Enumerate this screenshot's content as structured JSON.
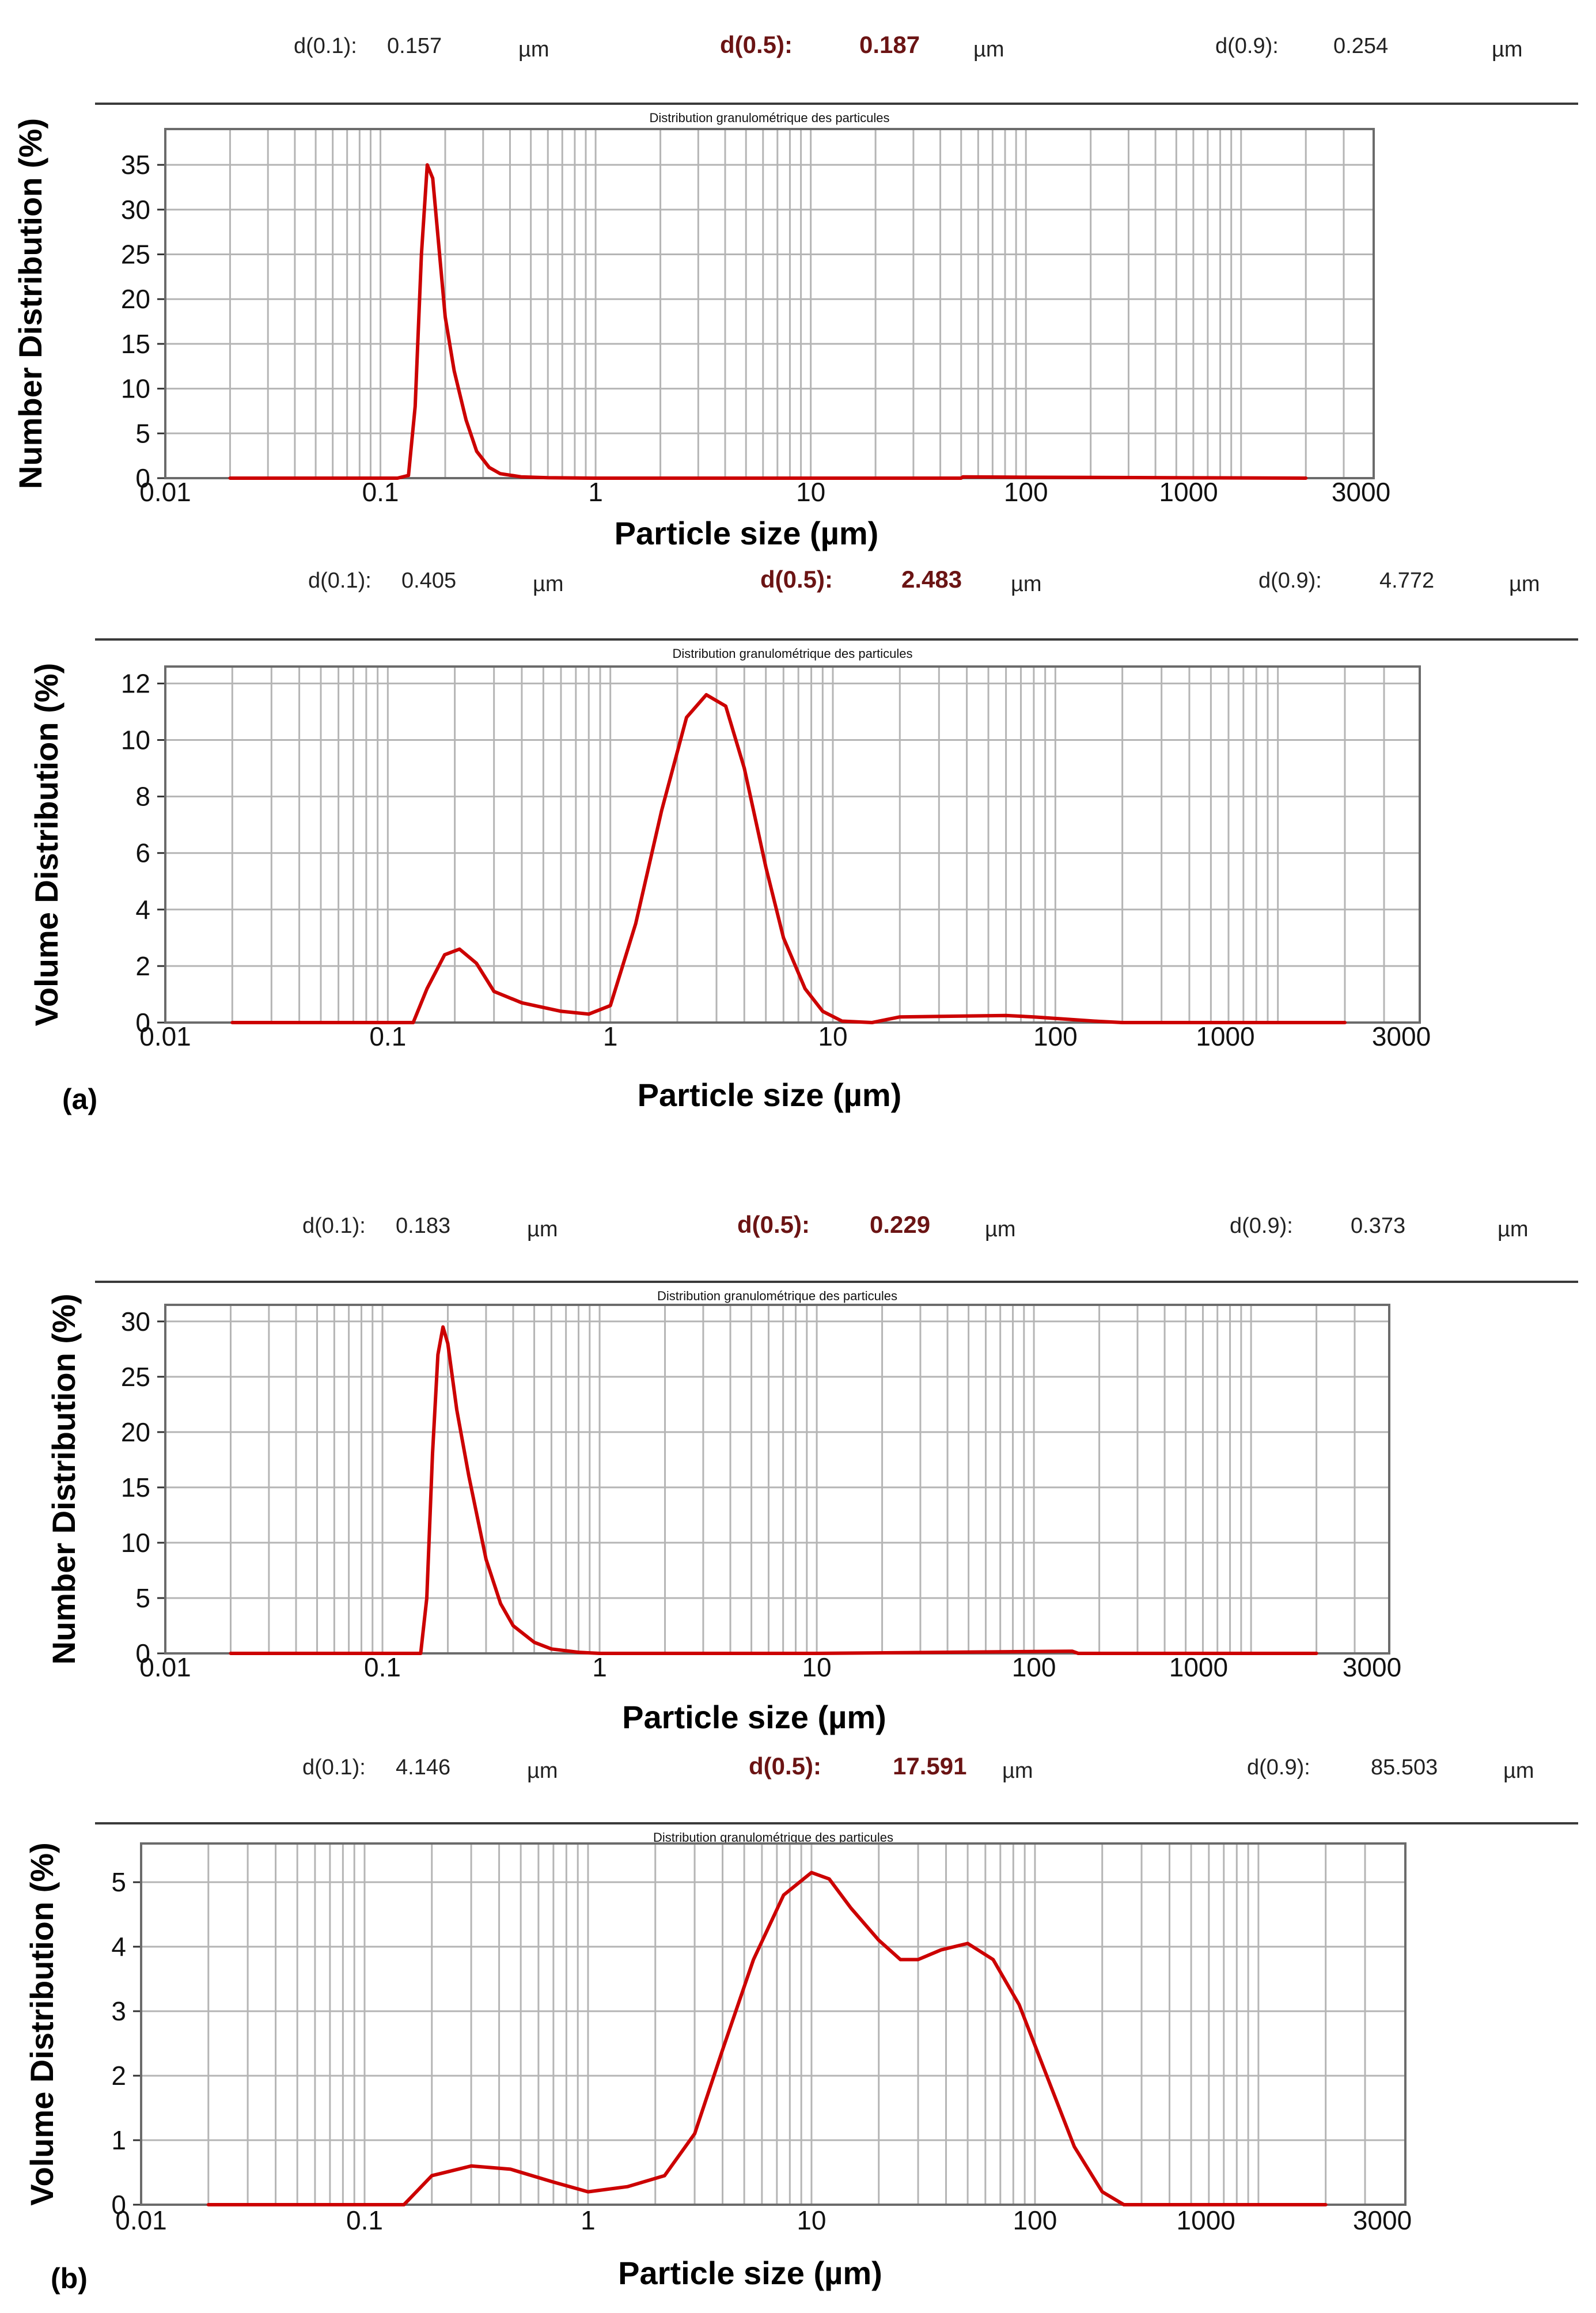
{
  "colors": {
    "curve": "#cc0000",
    "grid": "#b5b5b5",
    "frame": "#6b6b6b",
    "median": "#6b1414"
  },
  "panel_labels": {
    "a": "(a)",
    "b": "(b)"
  },
  "chart_data": [
    {
      "type": "line",
      "panel": "(a)",
      "title": "Distribution granulométrique des particules",
      "ylabel": "Number Distribution (%)",
      "xlabel": "Particle size (µm)",
      "xscale": "log",
      "xlim": [
        0.01,
        3000
      ],
      "ylim": [
        0,
        39
      ],
      "yticks": [
        0,
        5,
        10,
        15,
        20,
        25,
        30,
        35
      ],
      "xtick_labels": [
        "0.01",
        "0.1",
        "1",
        "10",
        "100",
        "1000",
        "3000"
      ],
      "xtick_values": [
        0.01,
        0.1,
        1,
        10,
        100,
        1000,
        3000
      ],
      "stats": {
        "d10": {
          "label": "d(0.1):",
          "value": "0.157",
          "unit": "µm"
        },
        "d50": {
          "label": "d(0.5):",
          "value": "0.187",
          "unit": "µm"
        },
        "d90": {
          "label": "d(0.9):",
          "value": "0.254",
          "unit": "µm"
        }
      },
      "x": [
        0.02,
        0.12,
        0.135,
        0.145,
        0.155,
        0.165,
        0.175,
        0.185,
        0.2,
        0.22,
        0.25,
        0.28,
        0.32,
        0.36,
        0.45,
        0.6,
        1,
        10,
        50,
        51,
        100,
        2000
      ],
      "y": [
        0,
        0,
        0.3,
        8,
        25,
        35,
        33.5,
        27,
        18,
        12,
        6.5,
        3,
        1.2,
        0.5,
        0.15,
        0.05,
        0,
        0,
        0,
        0.15,
        0.1,
        0
      ]
    },
    {
      "type": "line",
      "panel": "(a)",
      "title": "Distribution granulométrique des particules",
      "ylabel": "Volume Distribution (%)",
      "xlabel": "Particle size (µm)",
      "xscale": "log",
      "xlim": [
        0.01,
        3000
      ],
      "ylim": [
        0,
        12.6
      ],
      "yticks": [
        0,
        2,
        4,
        6,
        8,
        10,
        12
      ],
      "xtick_labels": [
        "0.01",
        "0.1",
        "1",
        "10",
        "100",
        "1000",
        "3000"
      ],
      "xtick_values": [
        0.01,
        0.1,
        1,
        10,
        100,
        1000,
        3000
      ],
      "stats": {
        "d10": {
          "label": "d(0.1):",
          "value": "0.405",
          "unit": "µm"
        },
        "d50": {
          "label": "d(0.5):",
          "value": "2.483",
          "unit": "µm"
        },
        "d90": {
          "label": "d(0.9):",
          "value": "4.772",
          "unit": "µm"
        }
      },
      "x": [
        0.02,
        0.13,
        0.15,
        0.18,
        0.21,
        0.25,
        0.3,
        0.4,
        0.6,
        0.8,
        1,
        1.3,
        1.7,
        2.2,
        2.7,
        3.3,
        4,
        5,
        6,
        7.5,
        9,
        11,
        15,
        20,
        60,
        80,
        150,
        200,
        2000
      ],
      "y": [
        0,
        0,
        1.2,
        2.4,
        2.6,
        2.1,
        1.1,
        0.7,
        0.4,
        0.3,
        0.6,
        3.5,
        7.5,
        10.8,
        11.6,
        11.2,
        9,
        5.5,
        3,
        1.2,
        0.4,
        0.05,
        0,
        0.2,
        0.25,
        0.2,
        0.05,
        0,
        0
      ]
    },
    {
      "type": "line",
      "panel": "(b)",
      "title": "Distribution granulométrique des particules",
      "ylabel": "Number Distribution (%)",
      "xlabel": "Particle size (µm)",
      "xscale": "log",
      "xlim": [
        0.01,
        3000
      ],
      "ylim": [
        0,
        31.5
      ],
      "yticks": [
        0,
        5,
        10,
        15,
        20,
        25,
        30
      ],
      "xtick_labels": [
        "0.01",
        "0.1",
        "1",
        "10",
        "100",
        "1000",
        "3000"
      ],
      "xtick_values": [
        0.01,
        0.1,
        1,
        10,
        100,
        1000,
        3000
      ],
      "stats": {
        "d10": {
          "label": "d(0.1):",
          "value": "0.183",
          "unit": "µm"
        },
        "d50": {
          "label": "d(0.5):",
          "value": "0.229",
          "unit": "µm"
        },
        "d90": {
          "label": "d(0.9):",
          "value": "0.373",
          "unit": "µm"
        }
      },
      "x": [
        0.02,
        0.15,
        0.16,
        0.17,
        0.18,
        0.19,
        0.2,
        0.22,
        0.25,
        0.3,
        0.35,
        0.4,
        0.5,
        0.6,
        0.8,
        1,
        10,
        150,
        160,
        2000
      ],
      "y": [
        0,
        0,
        5,
        18,
        27,
        29.5,
        28,
        22,
        16,
        8.5,
        4.5,
        2.5,
        1,
        0.4,
        0.1,
        0,
        0,
        0.2,
        0,
        0
      ]
    },
    {
      "type": "line",
      "panel": "(b)",
      "title": "Distribution granulométrique des particules",
      "ylabel": "Volume Distribution (%)",
      "xlabel": "Particle size (µm)",
      "xscale": "log",
      "xlim": [
        0.01,
        3000
      ],
      "ylim": [
        0,
        5.6
      ],
      "yticks": [
        0,
        1,
        2,
        3,
        4,
        5
      ],
      "xtick_labels": [
        "0.01",
        "0.1",
        "1",
        "10",
        "100",
        "1000",
        "3000"
      ],
      "xtick_values": [
        0.01,
        0.1,
        1,
        10,
        100,
        1000,
        3000
      ],
      "stats": {
        "d10": {
          "label": "d(0.1):",
          "value": "4.146",
          "unit": "µm"
        },
        "d50": {
          "label": "d(0.5):",
          "value": "17.591",
          "unit": "µm"
        },
        "d90": {
          "label": "d(0.9):",
          "value": "85.503",
          "unit": "µm"
        }
      },
      "x": [
        0.02,
        0.15,
        0.2,
        0.3,
        0.45,
        0.7,
        1,
        1.5,
        2.2,
        3,
        4,
        5.5,
        7.5,
        10,
        12,
        15,
        20,
        25,
        30,
        38,
        50,
        65,
        85,
        110,
        150,
        200,
        250,
        300,
        2000
      ],
      "y": [
        0,
        0,
        0.45,
        0.6,
        0.55,
        0.35,
        0.2,
        0.28,
        0.45,
        1.1,
        2.4,
        3.8,
        4.8,
        5.15,
        5.05,
        4.6,
        4.1,
        3.8,
        3.8,
        3.95,
        4.05,
        3.8,
        3.1,
        2.1,
        0.9,
        0.2,
        0,
        0,
        0
      ]
    }
  ]
}
